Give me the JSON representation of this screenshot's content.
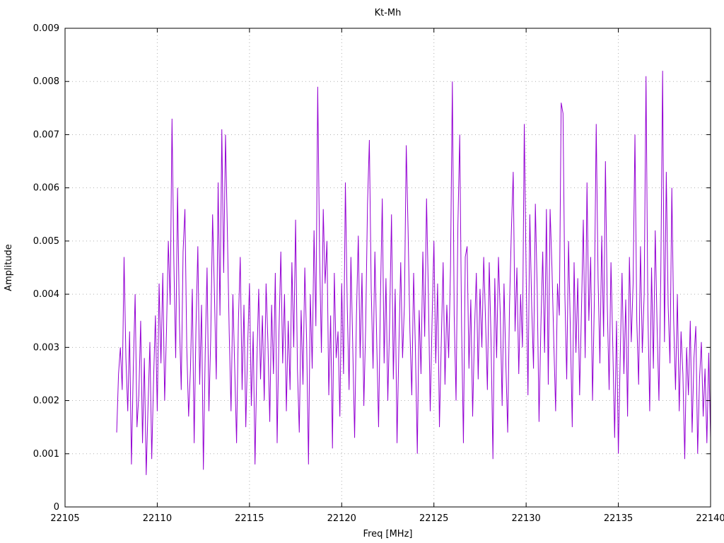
{
  "title": "Kt-Mh",
  "chart_data": {
    "type": "line",
    "title": "Kt-Mh",
    "xlabel": "Freq [MHz]",
    "ylabel": "Amplitude",
    "xlim": [
      22105,
      22140
    ],
    "ylim": [
      0,
      0.009
    ],
    "x_ticks": [
      22105,
      22110,
      22115,
      22120,
      22125,
      22130,
      22135,
      22140
    ],
    "x_tick_labels": [
      "22105",
      "22110",
      "22115",
      "22120",
      "22125",
      "22130",
      "22135",
      "22140"
    ],
    "y_ticks": [
      0,
      0.001,
      0.002,
      0.003,
      0.004,
      0.005,
      0.006,
      0.007,
      0.008,
      0.009
    ],
    "y_tick_labels": [
      "0",
      "0.001",
      "0.002",
      "0.003",
      "0.004",
      "0.005",
      "0.006",
      "0.007",
      "0.008",
      "0.009"
    ],
    "grid": true,
    "legend": "none",
    "line_color": "#9400d3",
    "grid_color": "#b0b0b0",
    "series": [
      {
        "name": "Kt-Mh",
        "x_start": 22107.8,
        "x_step": 0.1,
        "y_scale": 0.0001,
        "values": [
          14,
          25,
          30,
          22,
          47,
          28,
          18,
          33,
          8,
          26,
          40,
          15,
          21,
          35,
          12,
          28,
          6,
          19,
          31,
          9,
          24,
          36,
          18,
          42,
          27,
          44,
          20,
          33,
          50,
          38,
          73,
          46,
          28,
          60,
          35,
          22,
          48,
          56,
          30,
          17,
          26,
          41,
          12,
          34,
          49,
          23,
          38,
          7,
          29,
          45,
          18,
          32,
          55,
          40,
          24,
          61,
          36,
          71,
          44,
          70,
          52,
          33,
          18,
          40,
          26,
          12,
          35,
          47,
          22,
          38,
          15,
          30,
          42,
          19,
          33,
          8,
          27,
          41,
          24,
          36,
          20,
          42,
          31,
          16,
          38,
          25,
          44,
          12,
          33,
          48,
          27,
          40,
          18,
          35,
          22,
          46,
          30,
          54,
          26,
          14,
          37,
          23,
          45,
          31,
          8,
          40,
          26,
          52,
          34,
          79,
          48,
          29,
          56,
          42,
          50,
          21,
          36,
          11,
          44,
          28,
          33,
          17,
          42,
          25,
          61,
          38,
          22,
          47,
          30,
          13,
          36,
          51,
          28,
          44,
          19,
          34,
          57,
          69,
          41,
          26,
          48,
          31,
          15,
          39,
          58,
          27,
          43,
          20,
          35,
          55,
          24,
          41,
          12,
          30,
          46,
          28,
          38,
          68,
          52,
          33,
          21,
          44,
          29,
          10,
          37,
          25,
          48,
          32,
          58,
          40,
          18,
          35,
          50,
          27,
          42,
          15,
          31,
          46,
          23,
          38,
          28,
          45,
          80,
          36,
          20,
          53,
          70,
          34,
          12,
          47,
          49,
          26,
          39,
          17,
          33,
          44,
          24,
          41,
          30,
          47,
          35,
          22,
          46,
          31,
          9,
          43,
          28,
          47,
          36,
          19,
          42,
          27,
          14,
          38,
          52,
          63,
          33,
          45,
          25,
          40,
          30,
          72,
          44,
          21,
          55,
          38,
          26,
          57,
          41,
          16,
          34,
          48,
          29,
          56,
          23,
          56,
          45,
          31,
          18,
          42,
          36,
          76,
          74,
          40,
          24,
          50,
          33,
          15,
          46,
          29,
          43,
          21,
          37,
          54,
          28,
          61,
          35,
          47,
          20,
          39,
          72,
          43,
          27,
          51,
          32,
          65,
          38,
          22,
          46,
          30,
          13,
          35,
          10,
          28,
          44,
          25,
          39,
          17,
          47,
          31,
          42,
          70,
          35,
          23,
          49,
          29,
          40,
          81,
          37,
          18,
          45,
          26,
          52,
          34,
          20,
          43,
          82,
          31,
          63,
          38,
          27,
          60,
          35,
          22,
          40,
          18,
          33,
          25,
          9,
          30,
          21,
          35,
          14,
          28,
          34,
          10,
          24,
          31,
          17,
          26,
          12,
          29,
          13
        ]
      }
    ]
  }
}
